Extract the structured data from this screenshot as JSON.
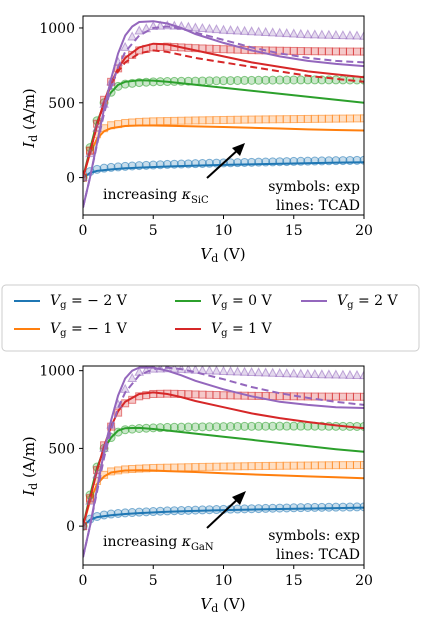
{
  "colors": {
    "-2": "#1f77b4",
    "-1": "#ff7f0e",
    "0": "#2ca02c",
    "1": "#d62728",
    "2": "#9467bd"
  },
  "legend": {
    "items": [
      {
        "vg": "-2",
        "label": "V_g = − 2 V"
      },
      {
        "vg": "0",
        "label": "V_g = 0 V"
      },
      {
        "vg": "2",
        "label": "V_g = 2 V"
      },
      {
        "vg": "-1",
        "label": "V_g = − 1 V"
      },
      {
        "vg": "1",
        "label": "V_g = 1 V"
      }
    ]
  },
  "chart_data": [
    {
      "type": "line",
      "xlabel": "V_d (V)",
      "ylabel": "I_d (A/m)",
      "xlim": [
        0,
        20
      ],
      "ylim": [
        -250,
        1080
      ],
      "xticks": [
        0,
        5,
        10,
        15,
        20
      ],
      "yticks": [
        0,
        500,
        1000
      ],
      "annotation": "increasing κ_SiC",
      "note_lines": [
        "symbols: exp",
        "lines: TCAD"
      ],
      "series": [
        {
          "vg": "-2",
          "kind": "exp",
          "x": [
            0,
            0.5,
            1,
            1.5,
            2,
            3,
            4,
            5,
            6,
            8,
            10,
            12,
            14,
            16,
            18,
            20
          ],
          "y": [
            0,
            40,
            55,
            63,
            68,
            75,
            80,
            84,
            88,
            93,
            98,
            102,
            106,
            110,
            113,
            116
          ]
        },
        {
          "vg": "-2",
          "kind": "tcad",
          "x": [
            0,
            0.5,
            1,
            2,
            3,
            4,
            6,
            8,
            10,
            14,
            18,
            20
          ],
          "y": [
            0,
            30,
            45,
            55,
            62,
            67,
            74,
            80,
            85,
            93,
            100,
            103
          ]
        },
        {
          "vg": "-1",
          "kind": "exp",
          "x": [
            0,
            0.5,
            1,
            1.5,
            2,
            3,
            4,
            5,
            6,
            8,
            10,
            12,
            14,
            16,
            18,
            20
          ],
          "y": [
            0,
            180,
            290,
            330,
            350,
            365,
            372,
            376,
            378,
            382,
            385,
            388,
            390,
            392,
            394,
            396
          ]
        },
        {
          "vg": "-1",
          "kind": "tcad",
          "x": [
            0,
            0.5,
            1,
            1.5,
            2,
            3,
            4,
            5,
            6,
            8,
            10,
            12,
            14,
            16,
            18,
            20
          ],
          "y": [
            0,
            160,
            260,
            310,
            330,
            345,
            348,
            348,
            346,
            342,
            338,
            333,
            328,
            322,
            318,
            315
          ]
        },
        {
          "vg": "0",
          "kind": "exp",
          "x": [
            0,
            0.5,
            1,
            1.5,
            2,
            2.5,
            3,
            4,
            5,
            6,
            8,
            10,
            12,
            14,
            16,
            18,
            20
          ],
          "y": [
            0,
            200,
            380,
            500,
            570,
            610,
            625,
            635,
            640,
            642,
            645,
            648,
            650,
            652,
            653,
            653,
            652
          ]
        },
        {
          "vg": "0",
          "kind": "tcad",
          "x": [
            0,
            0.5,
            1,
            1.5,
            2,
            2.5,
            3,
            4,
            5,
            6,
            8,
            10,
            12,
            14,
            16,
            18,
            20
          ],
          "y": [
            0,
            190,
            370,
            490,
            570,
            620,
            640,
            650,
            648,
            640,
            620,
            600,
            580,
            560,
            540,
            520,
            500
          ]
        },
        {
          "vg": "1",
          "kind": "exp",
          "x": [
            0,
            0.5,
            1,
            1.5,
            2,
            2.5,
            3,
            4,
            5,
            6,
            7,
            8,
            10,
            12,
            14,
            16,
            18,
            20
          ],
          "y": [
            0,
            180,
            360,
            520,
            640,
            730,
            790,
            850,
            870,
            875,
            870,
            865,
            858,
            852,
            848,
            845,
            843,
            842
          ]
        },
        {
          "vg": "1",
          "kind": "tcad",
          "x": [
            0,
            0.5,
            1,
            1.5,
            2,
            2.5,
            3,
            4,
            5,
            6,
            7,
            8,
            10,
            12,
            14,
            16,
            18,
            20
          ],
          "y": [
            0,
            170,
            350,
            510,
            630,
            730,
            800,
            870,
            895,
            890,
            870,
            850,
            810,
            770,
            740,
            710,
            690,
            670
          ]
        },
        {
          "vg": "1",
          "kind": "tcad2",
          "x": [
            0,
            0.5,
            1,
            1.5,
            2,
            2.5,
            3,
            4,
            5,
            6,
            7,
            8,
            10,
            12,
            14,
            16,
            18,
            20
          ],
          "y": [
            0,
            170,
            345,
            500,
            620,
            710,
            770,
            830,
            850,
            840,
            820,
            800,
            770,
            740,
            710,
            680,
            660,
            640
          ]
        },
        {
          "vg": "2",
          "kind": "exp",
          "x": [
            0,
            0.5,
            1,
            1.5,
            2,
            2.5,
            3,
            3.5,
            4,
            5,
            6,
            7,
            8,
            10,
            12,
            14,
            16,
            18,
            20
          ],
          "y": [
            0,
            160,
            330,
            490,
            640,
            770,
            870,
            940,
            980,
            1010,
            1015,
            1010,
            1000,
            985,
            975,
            965,
            955,
            950,
            945
          ]
        },
        {
          "vg": "2",
          "kind": "tcad",
          "x": [
            0,
            0.5,
            1,
            1.5,
            2,
            2.5,
            3,
            3.5,
            4,
            5,
            6,
            7,
            8,
            10,
            12,
            14,
            16,
            18,
            20
          ],
          "y": [
            -200,
            0,
            230,
            460,
            660,
            830,
            950,
            1010,
            1040,
            1045,
            1030,
            1000,
            960,
            900,
            850,
            810,
            780,
            760,
            745
          ]
        },
        {
          "vg": "2",
          "kind": "tcad2",
          "x": [
            0,
            0.5,
            1,
            1.5,
            2,
            2.5,
            3,
            4,
            5,
            6,
            7,
            8,
            10,
            12,
            14,
            16,
            18,
            20
          ],
          "y": [
            -200,
            0,
            220,
            430,
            600,
            740,
            840,
            950,
            1000,
            1010,
            995,
            970,
            920,
            870,
            830,
            800,
            780,
            770
          ]
        }
      ]
    },
    {
      "type": "line",
      "xlabel": "V_d (V)",
      "ylabel": "I_d (A/m)",
      "xlim": [
        0,
        20
      ],
      "ylim": [
        -250,
        1030
      ],
      "xticks": [
        0,
        5,
        10,
        15,
        20
      ],
      "yticks": [
        0,
        500,
        1000
      ],
      "annotation": "increasing κ_GaN",
      "note_lines": [
        "symbols: exp",
        "lines: TCAD"
      ],
      "series": [
        {
          "vg": "-2",
          "kind": "exp",
          "x": [
            0,
            0.5,
            1,
            1.5,
            2,
            3,
            4,
            5,
            6,
            8,
            10,
            12,
            14,
            16,
            18,
            20
          ],
          "y": [
            0,
            45,
            62,
            72,
            78,
            85,
            90,
            94,
            98,
            103,
            108,
            112,
            116,
            120,
            122,
            124
          ]
        },
        {
          "vg": "-2",
          "kind": "tcad",
          "x": [
            0,
            0.5,
            1,
            2,
            3,
            4,
            6,
            8,
            10,
            14,
            18,
            20
          ],
          "y": [
            0,
            40,
            58,
            70,
            78,
            84,
            92,
            98,
            103,
            110,
            116,
            119
          ]
        },
        {
          "vg": "-1",
          "kind": "exp",
          "x": [
            0,
            0.5,
            1,
            1.5,
            2,
            3,
            4,
            5,
            6,
            8,
            10,
            12,
            14,
            16,
            18,
            20
          ],
          "y": [
            0,
            170,
            290,
            330,
            352,
            365,
            370,
            374,
            376,
            380,
            383,
            386,
            388,
            390,
            392,
            393
          ]
        },
        {
          "vg": "-1",
          "kind": "tcad",
          "x": [
            0,
            0.5,
            1,
            1.5,
            2,
            3,
            4,
            5,
            6,
            8,
            10,
            12,
            14,
            16,
            18,
            20
          ],
          "y": [
            0,
            160,
            270,
            320,
            345,
            358,
            360,
            358,
            354,
            348,
            340,
            333,
            326,
            320,
            314,
            308
          ]
        },
        {
          "vg": "0",
          "kind": "exp",
          "x": [
            0,
            0.5,
            1,
            1.5,
            2,
            2.5,
            3,
            4,
            5,
            6,
            8,
            10,
            12,
            14,
            16,
            18,
            20
          ],
          "y": [
            0,
            200,
            380,
            500,
            570,
            605,
            620,
            628,
            632,
            635,
            638,
            640,
            642,
            643,
            643,
            642,
            641
          ]
        },
        {
          "vg": "0",
          "kind": "tcad",
          "x": [
            0,
            0.5,
            1,
            1.5,
            2,
            2.5,
            3,
            4,
            5,
            6,
            8,
            10,
            12,
            14,
            16,
            18,
            20
          ],
          "y": [
            0,
            195,
            375,
            495,
            570,
            615,
            630,
            632,
            625,
            615,
            595,
            575,
            555,
            535,
            515,
            495,
            478
          ]
        },
        {
          "vg": "1",
          "kind": "exp",
          "x": [
            0,
            0.5,
            1,
            1.5,
            2,
            2.5,
            3,
            4,
            5,
            6,
            7,
            8,
            10,
            12,
            14,
            16,
            18,
            20
          ],
          "y": [
            0,
            180,
            360,
            520,
            640,
            730,
            790,
            835,
            850,
            852,
            850,
            847,
            842,
            838,
            836,
            834,
            833,
            832
          ]
        },
        {
          "vg": "1",
          "kind": "tcad",
          "x": [
            0,
            0.5,
            1,
            1.5,
            2,
            2.5,
            3,
            4,
            5,
            6,
            7,
            8,
            10,
            12,
            14,
            16,
            18,
            20
          ],
          "y": [
            0,
            175,
            355,
            515,
            640,
            740,
            800,
            850,
            860,
            850,
            830,
            805,
            765,
            725,
            695,
            670,
            648,
            630
          ]
        },
        {
          "vg": "2",
          "kind": "exp",
          "x": [
            0,
            0.5,
            1,
            1.5,
            2,
            2.5,
            3,
            3.5,
            4,
            5,
            6,
            7,
            8,
            10,
            12,
            14,
            16,
            18,
            20
          ],
          "y": [
            0,
            160,
            330,
            500,
            650,
            780,
            880,
            950,
            990,
            1010,
            1012,
            1008,
            1003,
            995,
            988,
            982,
            976,
            972,
            968
          ]
        },
        {
          "vg": "2",
          "kind": "tcad",
          "x": [
            0,
            0.5,
            1,
            1.5,
            2,
            2.5,
            3,
            3.5,
            4,
            5,
            6,
            7,
            8,
            10,
            12,
            14,
            16,
            18,
            20
          ],
          "y": [
            -200,
            0,
            240,
            480,
            680,
            840,
            950,
            1000,
            1020,
            1020,
            1000,
            970,
            935,
            880,
            835,
            800,
            780,
            765,
            760
          ]
        },
        {
          "vg": "2",
          "kind": "tcad2",
          "x": [
            0,
            0.5,
            1,
            1.5,
            2,
            2.5,
            3,
            4,
            5,
            6,
            7,
            8,
            10,
            12,
            14,
            16,
            18,
            20
          ],
          "y": [
            -200,
            0,
            220,
            440,
            620,
            760,
            860,
            970,
            1010,
            1020,
            1010,
            990,
            945,
            895,
            855,
            825,
            800,
            780
          ]
        }
      ]
    }
  ]
}
